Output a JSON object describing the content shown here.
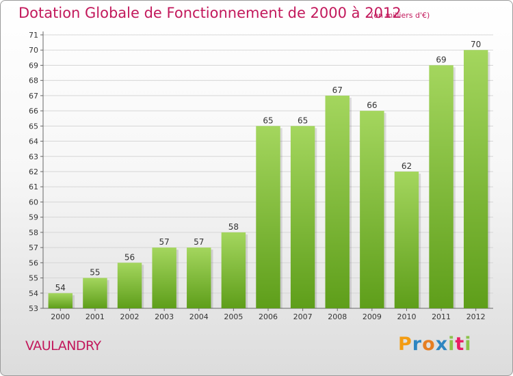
{
  "title": "Dotation Globale de Fonctionnement de 2000 à 2012",
  "subtitle": "(en milliers d'€)",
  "place": "VAULANDRY",
  "logo": {
    "letters": [
      "P",
      "r",
      "o",
      "x",
      "i",
      "t",
      "i"
    ],
    "colors": [
      "#f39c12",
      "#2e86c1",
      "#e67e22",
      "#2e86c1",
      "#8bc34a",
      "#e91e63",
      "#8bc34a"
    ]
  },
  "colors": {
    "title": "#c2185b",
    "bar_top": "#a4d65e",
    "bar_bottom": "#5e9e1a",
    "grid": "#d6d6d6"
  },
  "chart_data": {
    "type": "bar",
    "categories": [
      "2000",
      "2001",
      "2002",
      "2003",
      "2004",
      "2005",
      "2006",
      "2007",
      "2008",
      "2009",
      "2010",
      "2011",
      "2012"
    ],
    "values": [
      54,
      55,
      56,
      57,
      57,
      58,
      65,
      65,
      67,
      66,
      62,
      69,
      70
    ],
    "ylim": [
      53,
      71
    ],
    "yticks": [
      53,
      54,
      55,
      56,
      57,
      58,
      59,
      60,
      61,
      62,
      63,
      64,
      65,
      66,
      67,
      68,
      69,
      70,
      71
    ],
    "grid": true,
    "data_labels": true
  }
}
